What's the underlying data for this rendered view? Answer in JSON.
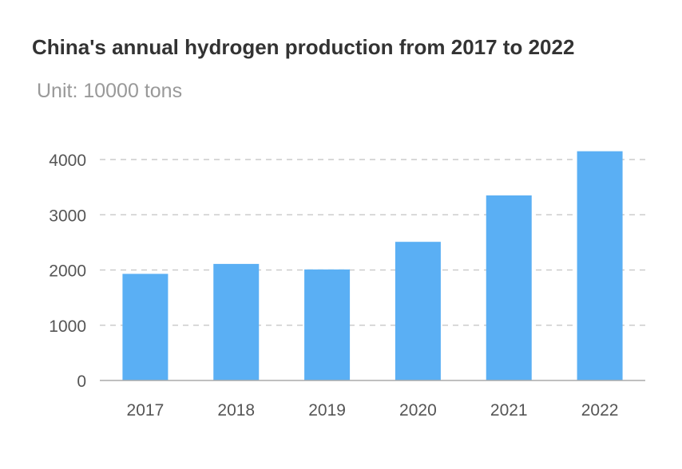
{
  "chart_data": {
    "type": "bar",
    "title": "China's annual hydrogen production from 2017 to 2022",
    "subtitle": "Unit: 10000 tons",
    "categories": [
      "2017",
      "2018",
      "2019",
      "2020",
      "2021",
      "2022"
    ],
    "values": [
      1930,
      2110,
      2010,
      2510,
      3350,
      4150
    ],
    "ylim": [
      0,
      4000
    ],
    "yticks": [
      0,
      1000,
      2000,
      3000,
      4000
    ],
    "grid": true,
    "colors": {
      "bar": "#5aaff4",
      "grid": "#cccccc",
      "axis": "#aaaaaa"
    }
  }
}
